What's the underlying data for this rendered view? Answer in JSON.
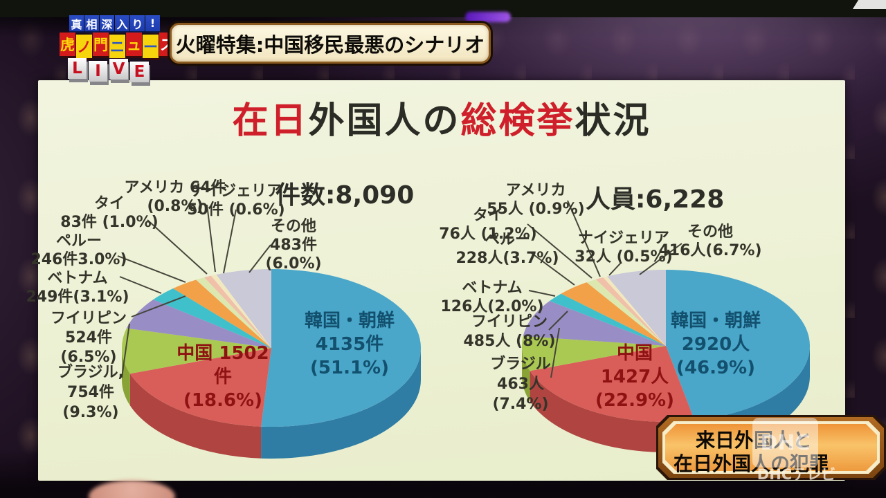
{
  "broadcast": {
    "logo": {
      "tagline": "真相深入り!",
      "title": "虎ノ門ニュース",
      "live": "LIVE",
      "block_red": "#d31b1b",
      "block_yellow": "#f6d40e",
      "tagline_bg": "#1d3cae"
    },
    "banner": "火曜特集:中国移民最悪のシナリオ",
    "bottom_right_caption": [
      "来日外国人と",
      "在日外国人の犯罪"
    ],
    "watermark_logo": "DHC",
    "watermark": "DHCテレビ"
  },
  "slide": {
    "title_segments": [
      {
        "text": "在日",
        "color": "#cf1f2a"
      },
      {
        "text": "外国人の",
        "color": "#2c2c26"
      },
      {
        "text": "総検挙",
        "color": "#cf1f2a"
      },
      {
        "text": "状況",
        "color": "#2c2c26"
      }
    ],
    "background": "#edf1d4"
  },
  "chart_data": [
    {
      "type": "pie",
      "title": "件数:8,090",
      "unit": "件",
      "total": 8090,
      "legend_position": "callouts",
      "slices": [
        {
          "name": "韓国・朝鮮",
          "value": 4135,
          "pct": 51.1,
          "color": "#4aa7ca",
          "side": "#2f7ca4",
          "label_style": "inside",
          "text_color": "#12506e",
          "label_lines": [
            "韓国・朝鮮",
            "4135件",
            "(51.1%)"
          ]
        },
        {
          "name": "中国",
          "value": 1502,
          "pct": 18.6,
          "color": "#d95e59",
          "side": "#af4440",
          "label_style": "inside",
          "text_color": "#8e1212",
          "label_lines": [
            "中国 1502",
            "件",
            "(18.6%)"
          ]
        },
        {
          "name": "ブラジル",
          "value": 754,
          "pct": 9.3,
          "color": "#aac953",
          "side": "#89a337",
          "label_style": "callout",
          "label_lines": [
            "ブラジル,",
            "754件",
            "(9.3%)"
          ]
        },
        {
          "name": "フイリピン",
          "value": 524,
          "pct": 6.5,
          "color": "#988dc5",
          "side": "#7a6ea6",
          "label_style": "callout",
          "label_lines": [
            "フイリピン",
            "524件",
            "(6.5%)"
          ]
        },
        {
          "name": "ベトナム",
          "value": 249,
          "pct": 3.1,
          "color": "#3fc0cb",
          "side": "#2c98a3",
          "label_style": "callout",
          "label_lines": [
            "ベトナム",
            "249件(3.1%)"
          ]
        },
        {
          "name": "ペルー",
          "value": 246,
          "pct": 3.0,
          "color": "#f2a149",
          "side": "#c87e2f",
          "label_style": "callout",
          "label_lines": [
            "ペルー",
            "246件3.0%)"
          ]
        },
        {
          "name": "タイ",
          "value": 83,
          "pct": 1.0,
          "color": "#dde8b0",
          "side": "#b6c288",
          "label_style": "callout",
          "label_lines": [
            "タイ",
            "83件 (1.0%)"
          ]
        },
        {
          "name": "アメリカ",
          "value": 64,
          "pct": 0.8,
          "color": "#f0c0a8",
          "side": "#cb9a81",
          "label_style": "callout",
          "label_lines": [
            "アメリカ 64件",
            "(0.8%)"
          ]
        },
        {
          "name": "ナイジェリア",
          "value": 50,
          "pct": 0.6,
          "color": "#f2e8c0",
          "side": "#cabf94",
          "label_style": "callout",
          "label_lines": [
            "ナイジェリア",
            "50件 (0.6%)"
          ]
        },
        {
          "name": "その他",
          "value": 483,
          "pct": 6.0,
          "color": "#c9c9d8",
          "side": "#a4a4ba",
          "label_style": "callout",
          "label_lines": [
            "その他",
            "483件",
            "(6.0%)"
          ]
        }
      ]
    },
    {
      "type": "pie",
      "title": "人員:6,228",
      "unit": "人",
      "total": 6228,
      "legend_position": "callouts",
      "slices": [
        {
          "name": "韓国・朝鮮",
          "value": 2920,
          "pct": 46.9,
          "color": "#4aa7ca",
          "side": "#2f7ca4",
          "label_style": "inside",
          "text_color": "#12506e",
          "label_lines": [
            "韓国・朝鮮",
            "2920人",
            "(46.9%)"
          ]
        },
        {
          "name": "中国",
          "value": 1427,
          "pct": 22.9,
          "color": "#d95e59",
          "side": "#af4440",
          "label_style": "inside",
          "text_color": "#8e1212",
          "label_lines": [
            "中国",
            "1427人",
            "(22.9%)"
          ]
        },
        {
          "name": "ブラジル",
          "value": 463,
          "pct": 7.4,
          "color": "#aac953",
          "side": "#89a337",
          "label_style": "callout",
          "label_lines": [
            "ブラジル",
            "463人",
            "(7.4%)"
          ]
        },
        {
          "name": "フイリピン",
          "value": 485,
          "pct": 8.0,
          "color": "#988dc5",
          "side": "#7a6ea6",
          "label_style": "callout",
          "label_lines": [
            "フイリピン",
            "485人 (8%)"
          ]
        },
        {
          "name": "ベトナム",
          "value": 126,
          "pct": 2.0,
          "color": "#3fc0cb",
          "side": "#2c98a3",
          "label_style": "callout",
          "label_lines": [
            "ベトナム",
            "126人(2.0%)"
          ]
        },
        {
          "name": "ペルー",
          "value": 228,
          "pct": 3.7,
          "color": "#f2a149",
          "side": "#c87e2f",
          "label_style": "callout",
          "label_lines": [
            "ペルー",
            "228人(3.7%)"
          ]
        },
        {
          "name": "タイ",
          "value": 76,
          "pct": 1.2,
          "color": "#dde8b0",
          "side": "#b6c288",
          "label_style": "callout",
          "label_lines": [
            "タイ",
            "76人 (1.2%)"
          ]
        },
        {
          "name": "アメリカ",
          "value": 55,
          "pct": 0.9,
          "color": "#f0c0a8",
          "side": "#cb9a81",
          "label_style": "callout",
          "label_lines": [
            "アメリカ",
            "55人 (0.9%)"
          ]
        },
        {
          "name": "ナイジェリア",
          "value": 32,
          "pct": 0.5,
          "color": "#f2e8c0",
          "side": "#cabf94",
          "label_style": "callout",
          "label_lines": [
            "ナイジェリア",
            "32人 (0.5%)"
          ]
        },
        {
          "name": "その他",
          "value": 416,
          "pct": 6.7,
          "color": "#c9c9d8",
          "side": "#a4a4ba",
          "label_style": "callout",
          "label_lines": [
            "その他",
            "416人(6.7%)"
          ]
        }
      ]
    }
  ]
}
